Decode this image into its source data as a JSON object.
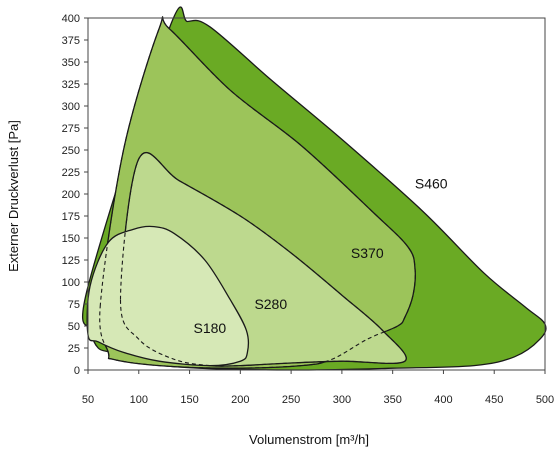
{
  "chart_data": {
    "type": "area",
    "title": "",
    "xlabel": "Volumenstrom [m³/h]",
    "ylabel": "Externer Druckverlust [Pa]",
    "xlim": [
      50,
      500
    ],
    "ylim": [
      0,
      400
    ],
    "xticks": [
      "50",
      "100",
      "150",
      "200",
      "250",
      "300",
      "350",
      "400",
      "450",
      "500"
    ],
    "yticks": [
      "0",
      "25",
      "50",
      "75",
      "100",
      "125",
      "150",
      "175",
      "200",
      "225",
      "250",
      "275",
      "300",
      "325",
      "350",
      "375",
      "400"
    ],
    "grid": false,
    "legend": "none",
    "series": [
      {
        "name": "S460",
        "color": "#6aaa24",
        "outline": [
          [
            50,
            95
          ],
          [
            130,
            388
          ],
          [
            148,
            396
          ],
          [
            170,
            390
          ],
          [
            230,
            330
          ],
          [
            300,
            262
          ],
          [
            380,
            180
          ],
          [
            440,
            110
          ],
          [
            480,
            72
          ],
          [
            500,
            52
          ],
          [
            495,
            35
          ],
          [
            470,
            15
          ],
          [
            430,
            5
          ],
          [
            350,
            2
          ],
          [
            260,
            0
          ],
          [
            160,
            2
          ],
          [
            100,
            8
          ],
          [
            75,
            14
          ],
          [
            72,
            20
          ],
          [
            60,
            25
          ],
          [
            53,
            45
          ],
          [
            50,
            95
          ]
        ],
        "label_at": [
          388,
          212
        ],
        "dashed": false
      },
      {
        "name": "S370",
        "color": "#9cc45a",
        "outline": [
          [
            62,
            72
          ],
          [
            85,
            250
          ],
          [
            120,
            388
          ],
          [
            130,
            388
          ],
          [
            190,
            318
          ],
          [
            260,
            255
          ],
          [
            330,
            180
          ],
          [
            365,
            140
          ],
          [
            372,
            115
          ],
          [
            370,
            85
          ],
          [
            362,
            60
          ],
          [
            355,
            50
          ],
          [
            325,
            35
          ],
          [
            290,
            12
          ],
          [
            260,
            5
          ],
          [
            190,
            2
          ],
          [
            120,
            5
          ],
          [
            75,
            12
          ],
          [
            70,
            20
          ],
          [
            62,
            72
          ]
        ],
        "label_at": [
          325,
          133
        ],
        "dashed": true
      },
      {
        "name": "S280",
        "color": "#bdd98e",
        "outline": [
          [
            82,
            80
          ],
          [
            100,
            240
          ],
          [
            140,
            215
          ],
          [
            200,
            175
          ],
          [
            250,
            133
          ],
          [
            300,
            85
          ],
          [
            340,
            45
          ],
          [
            362,
            10
          ],
          [
            300,
            10
          ],
          [
            250,
            8
          ],
          [
            200,
            5
          ],
          [
            170,
            5
          ],
          [
            135,
            12
          ],
          [
            100,
            35
          ],
          [
            82,
            80
          ]
        ],
        "label_at": [
          230,
          75
        ],
        "dashed": true
      },
      {
        "name": "S180",
        "color": "#d6e8b6",
        "outline": [
          [
            50,
            40
          ],
          [
            52,
            95
          ],
          [
            70,
            145
          ],
          [
            95,
            160
          ],
          [
            115,
            163
          ],
          [
            135,
            155
          ],
          [
            165,
            125
          ],
          [
            190,
            80
          ],
          [
            206,
            45
          ],
          [
            207,
            20
          ],
          [
            200,
            10
          ],
          [
            170,
            5
          ],
          [
            120,
            10
          ],
          [
            85,
            20
          ],
          [
            60,
            32
          ],
          [
            50,
            40
          ]
        ],
        "label_at": [
          170,
          48
        ],
        "dashed": false
      }
    ]
  }
}
